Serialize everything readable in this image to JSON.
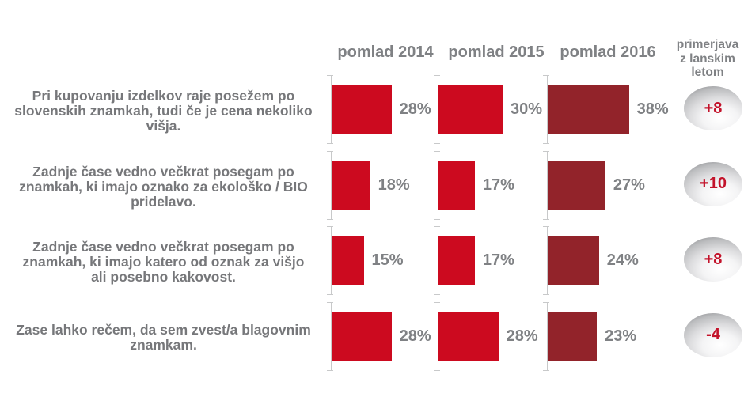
{
  "colors": {
    "bar_red": "#cc0a1f",
    "bar_dark": "#92232a",
    "text_gray": "#76777a",
    "label_gray": "#7f8184",
    "axis_gray": "#c8c9ca",
    "badge_red": "#c3132b"
  },
  "chart_data": {
    "type": "bar",
    "orientation": "horizontal",
    "unit": "%",
    "xlim": [
      0,
      52
    ],
    "grid": false,
    "legend_position": "column-headers-top",
    "series_labels": [
      "pomlad 2014",
      "pomlad 2015",
      "pomlad 2016"
    ],
    "comparison_header": [
      "primerjava",
      "z lanskim",
      "letom"
    ],
    "rows": [
      {
        "statement": [
          "Pri kupovanju izdelkov raje posežem po",
          "slovenskih znamkah, tudi če je cena nekoliko",
          "višja."
        ],
        "values": [
          28,
          30,
          38
        ],
        "display": [
          "28%",
          "30%",
          "38%"
        ],
        "change": 8,
        "change_label": "+8"
      },
      {
        "statement": [
          "Zadnje čase vedno večkrat posegam po",
          "znamkah, ki imajo oznako za ekološko / BIO",
          "pridelavo."
        ],
        "values": [
          18,
          17,
          27
        ],
        "display": [
          "18%",
          "17%",
          "27%"
        ],
        "change": 10,
        "change_label": "+10"
      },
      {
        "statement": [
          "Zadnje čase vedno večkrat posegam po",
          "znamkah, ki imajo katero od oznak za višjo",
          "ali posebno kakovost."
        ],
        "values": [
          15,
          17,
          24
        ],
        "display": [
          "15%",
          "17%",
          "24%"
        ],
        "change": 8,
        "change_label": "+8"
      },
      {
        "statement": [
          "Zase lahko rečem, da sem zvest/a blagovnim",
          "znamkam."
        ],
        "values": [
          28,
          28,
          23
        ],
        "display": [
          "28%",
          "28%",
          "23%"
        ],
        "change": -4,
        "change_label": "-4"
      }
    ]
  }
}
